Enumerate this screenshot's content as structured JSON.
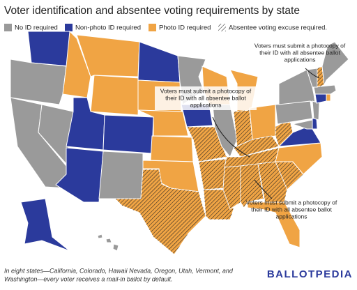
{
  "header": {
    "title": "Voter identification and absentee voting requirements by state"
  },
  "legend": [
    {
      "label": "No ID required",
      "color": "#9a9a9a"
    },
    {
      "label": "Non-photo ID required",
      "color": "#2b3a9c"
    },
    {
      "label": "Photo ID required",
      "color": "#f0a444"
    },
    {
      "label": "Absentee voting excuse required."
    }
  ],
  "annotations": [
    {
      "lines": [
        "Voters must submit a photocopy of",
        "their ID with all absentee ballot",
        "applications"
      ]
    },
    {
      "lines": [
        "Voters must submit a photocopy of",
        "their ID with all absentee ballot",
        "applications"
      ]
    },
    {
      "lines": [
        "Voters must submit a photocopy of",
        "their ID with all absentee ballot",
        "applications"
      ]
    }
  ],
  "footnote": {
    "lines": [
      "In eight states—California, Colorado, Hawaii Nevada, Oregon, Utah, Vermont, and",
      "Washington—every voter receives a mail-in ballot by default."
    ]
  },
  "logo": "BALLOTPEDIA"
}
